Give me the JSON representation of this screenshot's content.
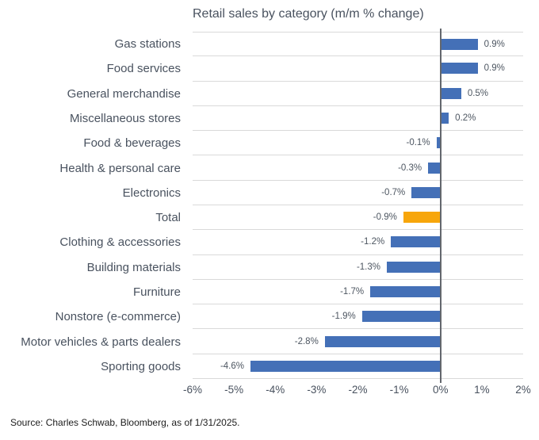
{
  "chart_data": {
    "type": "bar",
    "orientation": "horizontal",
    "title": "Retail sales by category (m/m % change)",
    "categories": [
      "Gas stations",
      "Food services",
      "General merchandise",
      "Miscellaneous stores",
      "Food & beverages",
      "Health & personal care",
      "Electronics",
      "Total",
      "Clothing & accessories",
      "Building materials",
      "Furniture",
      "Nonstore (e-commerce)",
      "Motor vehicles & parts dealers",
      "Sporting goods"
    ],
    "values": [
      0.9,
      0.9,
      0.5,
      0.2,
      -0.1,
      -0.3,
      -0.7,
      -0.9,
      -1.2,
      -1.3,
      -1.7,
      -1.9,
      -2.8,
      -4.6
    ],
    "labels": [
      "0.9%",
      "0.9%",
      "0.5%",
      "0.2%",
      "-0.1%",
      "-0.3%",
      "-0.7%",
      "-0.9%",
      "-1.2%",
      "-1.3%",
      "-1.7%",
      "-1.9%",
      "-2.8%",
      "-4.6%"
    ],
    "highlight_index": 7,
    "highlight_category": "Total",
    "xlim": [
      -6,
      2
    ],
    "x_ticks": [
      "-6%",
      "-5%",
      "-4%",
      "-3%",
      "-2%",
      "-1%",
      "0%",
      "1%",
      "2%"
    ],
    "bar_color": "#4470b7",
    "highlight_color": "#f7a60b",
    "grid": true,
    "legend": "none"
  },
  "source": {
    "text": "Source: Charles Schwab, Bloomberg, as of 1/31/2025."
  }
}
